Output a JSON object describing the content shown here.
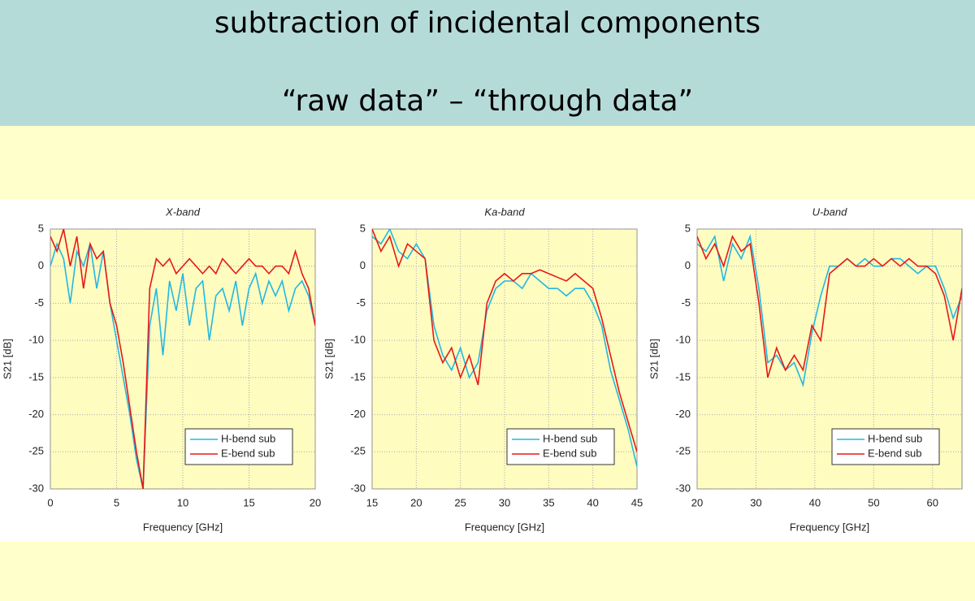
{
  "header": {
    "lines": [
      "subtraction of incidental components",
      "“raw data” – “through data”"
    ]
  },
  "chart_data": [
    {
      "type": "line",
      "title": "X-band",
      "xlabel": "Frequency [GHz]",
      "ylabel": "S21 [dB]",
      "x": [
        0,
        0.5,
        1,
        1.5,
        2,
        2.5,
        3,
        3.5,
        4,
        4.5,
        5,
        5.5,
        6,
        6.5,
        7,
        7.5,
        8,
        8.5,
        9,
        9.5,
        10,
        10.5,
        11,
        11.5,
        12,
        12.5,
        13,
        13.5,
        14,
        14.5,
        15,
        15.5,
        16,
        16.5,
        17,
        17.5,
        18,
        18.5,
        19,
        19.5,
        20
      ],
      "series": [
        {
          "name": "H-bend sub",
          "color": "#22b8e0",
          "values": [
            0,
            3,
            1,
            -5,
            2,
            0,
            3,
            -3,
            2,
            -5,
            -10,
            -15,
            -20,
            -26,
            -30,
            -8,
            -3,
            -12,
            -2,
            -6,
            -1,
            -8,
            -3,
            -2,
            -10,
            -4,
            -3,
            -6,
            -2,
            -8,
            -3,
            -1,
            -5,
            -2,
            -4,
            -2,
            -6,
            -3,
            -2,
            -4,
            -8
          ]
        },
        {
          "name": "E-bend sub",
          "color": "#e81818",
          "values": [
            4,
            2,
            5,
            0,
            4,
            -3,
            3,
            1,
            2,
            -5,
            -8,
            -13,
            -19,
            -25,
            -30,
            -3,
            1,
            0,
            1,
            -1,
            0,
            1,
            0,
            -1,
            0,
            -1,
            1,
            0,
            -1,
            0,
            1,
            0,
            0,
            -1,
            0,
            0,
            -1,
            2,
            -1,
            -3,
            -8
          ]
        }
      ],
      "xlim": [
        0,
        20
      ],
      "xticks": [
        0,
        5,
        10,
        15,
        20
      ],
      "ylim": [
        -30,
        5
      ],
      "yticks": [
        -30,
        -25,
        -20,
        -15,
        -10,
        -5,
        0,
        5
      ],
      "grid": true,
      "legend": "lower right"
    },
    {
      "type": "line",
      "title": "Ka-band",
      "xlabel": "Frequency [GHz]",
      "ylabel": "S21 [dB]",
      "x": [
        15,
        16,
        17,
        18,
        19,
        20,
        21,
        22,
        23,
        24,
        25,
        26,
        27,
        28,
        29,
        30,
        31,
        32,
        33,
        34,
        35,
        36,
        37,
        38,
        39,
        40,
        41,
        42,
        43,
        44,
        45
      ],
      "series": [
        {
          "name": "H-bend sub",
          "color": "#22b8e0",
          "values": [
            4,
            3,
            5,
            2,
            1,
            3,
            1,
            -8,
            -12,
            -14,
            -11,
            -15,
            -13,
            -6,
            -3,
            -2,
            -2,
            -3,
            -1,
            -2,
            -3,
            -3,
            -4,
            -3,
            -3,
            -5,
            -8,
            -14,
            -18,
            -22,
            -27
          ]
        },
        {
          "name": "E-bend sub",
          "color": "#e81818",
          "values": [
            5,
            2,
            4,
            0,
            3,
            2,
            1,
            -10,
            -13,
            -11,
            -15,
            -12,
            -16,
            -5,
            -2,
            -1,
            -2,
            -1,
            -1,
            -0.5,
            -1,
            -1.5,
            -2,
            -1,
            -2,
            -3,
            -7,
            -12,
            -17,
            -21,
            -25
          ]
        }
      ],
      "xlim": [
        15,
        45
      ],
      "xticks": [
        15,
        20,
        25,
        30,
        35,
        40,
        45
      ],
      "ylim": [
        -30,
        5
      ],
      "yticks": [
        -30,
        -25,
        -20,
        -15,
        -10,
        -5,
        0,
        5
      ],
      "grid": true,
      "legend": "lower right"
    },
    {
      "type": "line",
      "title": "U-band",
      "xlabel": "Frequency [GHz]",
      "ylabel": "S21 [dB]",
      "x": [
        20,
        21.5,
        23,
        24.5,
        26,
        27.5,
        29,
        30.5,
        32,
        33.5,
        35,
        36.5,
        38,
        39.5,
        41,
        42.5,
        44,
        45.5,
        47,
        48.5,
        50,
        51.5,
        53,
        54.5,
        56,
        57.5,
        59,
        60.5,
        62,
        63.5,
        65
      ],
      "series": [
        {
          "name": "H-bend sub",
          "color": "#22b8e0",
          "values": [
            3,
            2,
            4,
            -2,
            3,
            1,
            4,
            -3,
            -13,
            -12,
            -14,
            -13,
            -16,
            -9,
            -4,
            0,
            0,
            1,
            0,
            1,
            0,
            0,
            1,
            1,
            0,
            -1,
            0,
            0,
            -3,
            -7,
            -4
          ]
        },
        {
          "name": "E-bend sub",
          "color": "#e81818",
          "values": [
            4,
            1,
            3,
            0,
            4,
            2,
            3,
            -5,
            -15,
            -11,
            -14,
            -12,
            -14,
            -8,
            -10,
            -1,
            0,
            1,
            0,
            0,
            1,
            0,
            1,
            0,
            1,
            0,
            0,
            -1,
            -4,
            -10,
            -3
          ]
        }
      ],
      "xlim": [
        20,
        65
      ],
      "xticks": [
        20,
        30,
        40,
        50,
        60
      ],
      "ylim": [
        -30,
        5
      ],
      "yticks": [
        -30,
        -25,
        -20,
        -15,
        -10,
        -5,
        0,
        5
      ],
      "grid": true,
      "legend": "lower right"
    }
  ]
}
